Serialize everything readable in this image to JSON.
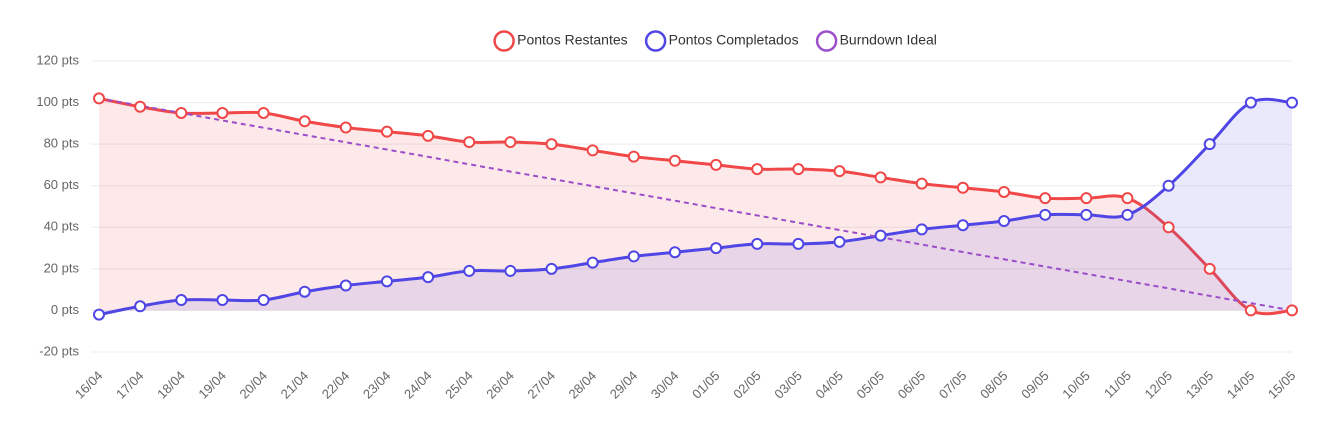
{
  "chart_data": {
    "type": "line",
    "categories": [
      "16/04",
      "17/04",
      "18/04",
      "19/04",
      "20/04",
      "21/04",
      "22/04",
      "23/04",
      "24/04",
      "25/04",
      "26/04",
      "27/04",
      "28/04",
      "29/04",
      "30/04",
      "01/05",
      "02/05",
      "03/05",
      "04/05",
      "05/05",
      "06/05",
      "07/05",
      "08/05",
      "09/05",
      "10/05",
      "11/05",
      "12/05",
      "13/05",
      "14/05",
      "15/05"
    ],
    "series": [
      {
        "name": "Pontos Restantes",
        "color": "#f04848",
        "fill": "rgba(240,72,72,0.12)",
        "markers": true,
        "values": [
          102,
          98,
          95,
          95,
          95,
          91,
          88,
          86,
          84,
          81,
          81,
          80,
          77,
          74,
          72,
          70,
          68,
          68,
          67,
          64,
          61,
          59,
          57,
          54,
          54,
          54,
          40,
          20,
          0,
          0
        ]
      },
      {
        "name": "Pontos Completados",
        "color": "#4f46e5",
        "fill": "rgba(79,70,229,0.12)",
        "markers": true,
        "values": [
          -2,
          2,
          5,
          5,
          5,
          9,
          12,
          14,
          16,
          19,
          19,
          20,
          23,
          26,
          28,
          30,
          32,
          32,
          33,
          36,
          39,
          41,
          43,
          46,
          46,
          46,
          60,
          80,
          100,
          100
        ]
      },
      {
        "name": "Burndown Ideal",
        "color": "#9b4dca",
        "dashed": true,
        "markers": false,
        "values": [
          102,
          98.5,
          95.0,
          91.4,
          87.9,
          84.4,
          80.9,
          77.4,
          73.9,
          70.3,
          66.8,
          63.3,
          59.8,
          56.3,
          52.8,
          49.2,
          45.7,
          42.2,
          38.7,
          35.2,
          31.7,
          28.1,
          24.6,
          21.1,
          17.6,
          14.1,
          10.6,
          7.0,
          3.5,
          0
        ]
      }
    ],
    "ylim": [
      -20,
      120
    ],
    "yticks": [
      {
        "value": -20,
        "label": "-20 pts"
      },
      {
        "value": 0,
        "label": "0 pts"
      },
      {
        "value": 20,
        "label": "20 pts"
      },
      {
        "value": 40,
        "label": "40 pts"
      },
      {
        "value": 60,
        "label": "60 pts"
      },
      {
        "value": 80,
        "label": "80 pts"
      },
      {
        "value": 100,
        "label": "100 pts"
      },
      {
        "value": 120,
        "label": "120 pts"
      }
    ],
    "grid": true,
    "legend": "top"
  }
}
